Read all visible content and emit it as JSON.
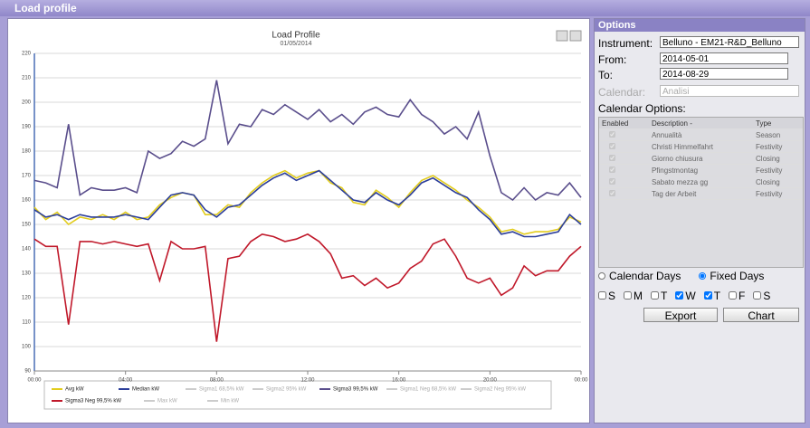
{
  "window_title": "Load profile",
  "chart_data": {
    "type": "line",
    "title": "Load Profile",
    "subtitle": "01/05/2014",
    "categories": [
      "00:00",
      null,
      null,
      null,
      null,
      null,
      null,
      null,
      "04:00",
      null,
      null,
      null,
      null,
      null,
      null,
      null,
      "08:00",
      null,
      null,
      null,
      null,
      null,
      null,
      null,
      "12:00",
      null,
      null,
      null,
      null,
      null,
      null,
      null,
      "16:00",
      null,
      null,
      null,
      null,
      null,
      null,
      null,
      "20:00",
      null,
      null,
      null,
      null,
      null,
      null,
      null,
      "00:00"
    ],
    "ylim": [
      90,
      220
    ],
    "yticks": [
      90,
      100,
      110,
      120,
      130,
      140,
      150,
      160,
      170,
      180,
      190,
      200,
      210,
      220
    ],
    "grid": true,
    "series": [
      {
        "name": "Avg kW",
        "color": "#e2cc1c",
        "values": [
          157,
          152,
          155,
          150,
          153,
          152,
          154,
          152,
          155,
          152,
          153,
          158,
          161,
          163,
          162,
          154,
          154,
          158,
          157,
          163,
          167,
          170,
          172,
          169,
          171,
          172,
          167,
          165,
          159,
          158,
          164,
          161,
          157,
          163,
          168,
          170,
          167,
          164,
          160,
          157,
          153,
          147,
          148,
          146,
          147,
          147,
          148,
          153,
          151
        ]
      },
      {
        "name": "Median kW",
        "color": "#2c3e9a",
        "values": [
          156,
          153,
          154,
          152,
          154,
          153,
          153,
          153,
          154,
          153,
          152,
          157,
          162,
          163,
          162,
          156,
          153,
          157,
          158,
          162,
          166,
          169,
          171,
          168,
          170,
          172,
          168,
          164,
          160,
          159,
          163,
          160,
          158,
          162,
          167,
          169,
          166,
          163,
          161,
          156,
          152,
          146,
          147,
          145,
          145,
          146,
          147,
          154,
          150
        ]
      },
      {
        "name": "Sigma1 68,5% kW",
        "color": "#aaaaaa",
        "hidden": true
      },
      {
        "name": "Sigma2 95% kW",
        "color": "#aaaaaa",
        "hidden": true
      },
      {
        "name": "Sigma3 99,5% kW",
        "color": "#5a4e8c",
        "values": [
          168,
          167,
          165,
          191,
          162,
          165,
          164,
          164,
          165,
          163,
          180,
          177,
          179,
          184,
          182,
          185,
          209,
          183,
          191,
          190,
          197,
          195,
          199,
          196,
          193,
          197,
          192,
          195,
          191,
          196,
          198,
          195,
          194,
          201,
          195,
          192,
          187,
          190,
          185,
          196,
          178,
          163,
          160,
          165,
          160,
          163,
          162,
          167,
          161
        ]
      },
      {
        "name": "Sigma1 Neg 68,5% kW",
        "color": "#aaaaaa",
        "hidden": true
      },
      {
        "name": "Sigma2 Neg 95% kW",
        "color": "#aaaaaa",
        "hidden": true
      },
      {
        "name": "Sigma3 Neg 99,5% kW",
        "color": "#c0182a",
        "values": [
          144,
          141,
          141,
          109,
          143,
          143,
          142,
          143,
          142,
          141,
          142,
          127,
          143,
          140,
          140,
          141,
          102,
          136,
          137,
          143,
          146,
          145,
          143,
          144,
          146,
          143,
          138,
          128,
          129,
          125,
          128,
          124,
          126,
          132,
          135,
          142,
          144,
          137,
          128,
          126,
          128,
          121,
          124,
          133,
          129,
          131,
          131,
          137,
          141
        ]
      },
      {
        "name": "Max kW",
        "color": "#aaaaaa",
        "hidden": true
      },
      {
        "name": "Min kW",
        "color": "#aaaaaa",
        "hidden": true
      }
    ]
  },
  "options": {
    "title": "Options",
    "instrument_label": "Instrument:",
    "instrument": "Belluno - EM21-R&D_Belluno",
    "from_label": "From:",
    "from": "2014-05-01",
    "to_label": "To:",
    "to": "2014-08-29",
    "calendar_label": "Calendar:",
    "calendar": "Analisi",
    "calendar_options_label": "Calendar Options:",
    "table": {
      "headers": [
        "Enabled",
        "Description -",
        "Type"
      ],
      "rows": [
        [
          "Annualità",
          "Season"
        ],
        [
          "Christi Himmelfahrt",
          "Festivity"
        ],
        [
          "Giorno chiusura",
          "Closing"
        ],
        [
          "Pfingstmontag",
          "Festivity"
        ],
        [
          "Sabato mezza gg",
          "Closing"
        ],
        [
          "Tag der Arbeit",
          "Festivity"
        ]
      ]
    },
    "radios": [
      {
        "label": "Calendar Days",
        "checked": false
      },
      {
        "label": "Fixed Days",
        "checked": true
      }
    ],
    "days": [
      {
        "label": "S",
        "checked": false
      },
      {
        "label": "M",
        "checked": false
      },
      {
        "label": "T",
        "checked": false
      },
      {
        "label": "W",
        "checked": true
      },
      {
        "label": "T",
        "checked": true
      },
      {
        "label": "F",
        "checked": false
      },
      {
        "label": "S",
        "checked": false
      }
    ],
    "buttons": [
      "Export",
      "Chart"
    ]
  }
}
